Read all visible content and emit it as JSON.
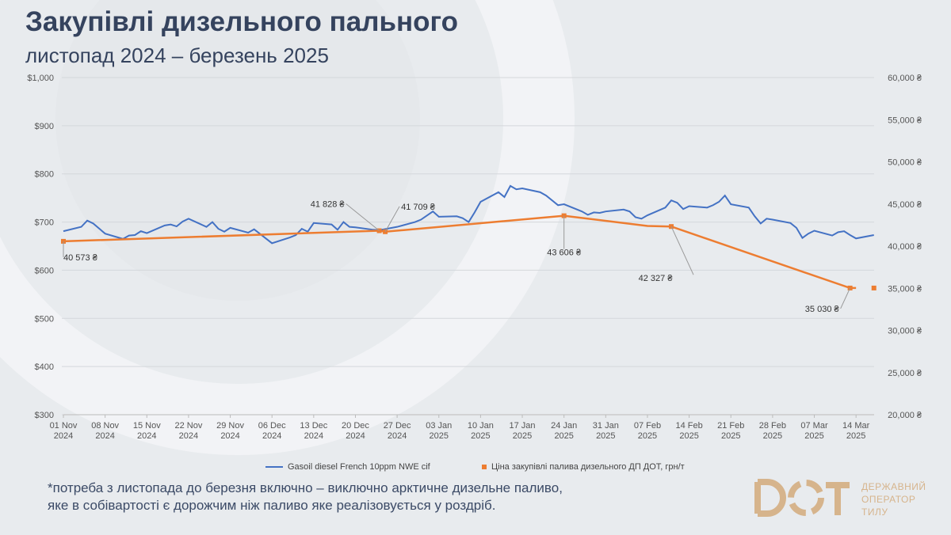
{
  "title": "Закупівлі дизельного пального",
  "subtitle": "листопад 2024 – березень 2025",
  "footnote": "*потреба з листопада до березня включно – виключно арктичне дизельне паливо, яке в собівартості є дорожчим ніж паливо яке реалізовується у роздріб.",
  "logo": {
    "mark": "DOT",
    "text_lines": [
      "ДЕРЖАВНИЙ",
      "ОПЕРАТОР",
      "ТИЛУ"
    ],
    "color": "#d6b48c"
  },
  "chart_data": {
    "type": "line",
    "left_axis": {
      "ylim": [
        300,
        1000
      ],
      "ticks": [
        "$1,000",
        "$900",
        "$800",
        "$700",
        "$600",
        "$500",
        "$400",
        "$300"
      ]
    },
    "right_axis": {
      "ylim": [
        20000,
        60000
      ],
      "ticks": [
        "60,000 ₴",
        "55,000 ₴",
        "50,000 ₴",
        "45,000 ₴",
        "40,000 ₴",
        "35,000 ₴",
        "30,000 ₴",
        "25,000 ₴",
        "20,000 ₴"
      ]
    },
    "x_ticks": [
      [
        "01 Nov",
        "2024"
      ],
      [
        "08 Nov",
        "2024"
      ],
      [
        "15 Nov",
        "2024"
      ],
      [
        "22 Nov",
        "2024"
      ],
      [
        "29 Nov",
        "2024"
      ],
      [
        "06 Dec",
        "2024"
      ],
      [
        "13 Dec",
        "2024"
      ],
      [
        "20 Dec",
        "2024"
      ],
      [
        "27 Dec",
        "2024"
      ],
      [
        "03 Jan",
        "2025"
      ],
      [
        "10 Jan",
        "2025"
      ],
      [
        "17 Jan",
        "2025"
      ],
      [
        "24 Jan",
        "2025"
      ],
      [
        "31 Jan",
        "2025"
      ],
      [
        "07 Feb",
        "2025"
      ],
      [
        "14 Feb",
        "2025"
      ],
      [
        "21 Feb",
        "2025"
      ],
      [
        "28 Feb",
        "2025"
      ],
      [
        "07 Mar",
        "2025"
      ],
      [
        "14 Mar",
        "2025"
      ]
    ],
    "grid": true,
    "legend_position": "bottom",
    "series": [
      {
        "name": "Gasoil diesel French 10ppm NWE cif",
        "axis": "left",
        "color": "#4472c4",
        "points": [
          [
            "2024-11-01",
            681
          ],
          [
            "2024-11-04",
            690
          ],
          [
            "2024-11-05",
            703
          ],
          [
            "2024-11-06",
            697
          ],
          [
            "2024-11-08",
            676
          ],
          [
            "2024-11-11",
            665
          ],
          [
            "2024-11-12",
            672
          ],
          [
            "2024-11-13",
            673
          ],
          [
            "2024-11-14",
            681
          ],
          [
            "2024-11-15",
            677
          ],
          [
            "2024-11-18",
            693
          ],
          [
            "2024-11-19",
            695
          ],
          [
            "2024-11-20",
            691
          ],
          [
            "2024-11-21",
            701
          ],
          [
            "2024-11-22",
            707
          ],
          [
            "2024-11-25",
            690
          ],
          [
            "2024-11-26",
            700
          ],
          [
            "2024-11-27",
            686
          ],
          [
            "2024-11-28",
            680
          ],
          [
            "2024-11-29",
            688
          ],
          [
            "2024-12-02",
            678
          ],
          [
            "2024-12-03",
            685
          ],
          [
            "2024-12-06",
            656
          ],
          [
            "2024-12-09",
            668
          ],
          [
            "2024-12-10",
            673
          ],
          [
            "2024-12-11",
            686
          ],
          [
            "2024-12-12",
            680
          ],
          [
            "2024-12-13",
            698
          ],
          [
            "2024-12-16",
            695
          ],
          [
            "2024-12-17",
            684
          ],
          [
            "2024-12-18",
            700
          ],
          [
            "2024-12-19",
            690
          ],
          [
            "2024-12-20",
            689
          ],
          [
            "2024-12-23",
            684
          ],
          [
            "2024-12-24",
            683
          ],
          [
            "2024-12-27",
            690
          ],
          [
            "2024-12-30",
            700
          ],
          [
            "2024-12-31",
            705
          ],
          [
            "2025-01-02",
            722
          ],
          [
            "2025-01-03",
            711
          ],
          [
            "2025-01-06",
            712
          ],
          [
            "2025-01-07",
            708
          ],
          [
            "2025-01-08",
            700
          ],
          [
            "2025-01-09",
            720
          ],
          [
            "2025-01-10",
            742
          ],
          [
            "2025-01-13",
            762
          ],
          [
            "2025-01-14",
            752
          ],
          [
            "2025-01-15",
            775
          ],
          [
            "2025-01-16",
            768
          ],
          [
            "2025-01-17",
            770
          ],
          [
            "2025-01-20",
            762
          ],
          [
            "2025-01-21",
            755
          ],
          [
            "2025-01-23",
            735
          ],
          [
            "2025-01-24",
            737
          ],
          [
            "2025-01-27",
            722
          ],
          [
            "2025-01-28",
            715
          ],
          [
            "2025-01-29",
            720
          ],
          [
            "2025-01-30",
            719
          ],
          [
            "2025-01-31",
            722
          ],
          [
            "2025-02-03",
            726
          ],
          [
            "2025-02-04",
            722
          ],
          [
            "2025-02-05",
            710
          ],
          [
            "2025-02-06",
            707
          ],
          [
            "2025-02-07",
            714
          ],
          [
            "2025-02-10",
            730
          ],
          [
            "2025-02-11",
            745
          ],
          [
            "2025-02-12",
            740
          ],
          [
            "2025-02-13",
            727
          ],
          [
            "2025-02-14",
            733
          ],
          [
            "2025-02-17",
            730
          ],
          [
            "2025-02-18",
            735
          ],
          [
            "2025-02-19",
            742
          ],
          [
            "2025-02-20",
            755
          ],
          [
            "2025-02-21",
            737
          ],
          [
            "2025-02-24",
            730
          ],
          [
            "2025-02-25",
            712
          ],
          [
            "2025-02-26",
            697
          ],
          [
            "2025-02-27",
            707
          ],
          [
            "2025-02-28",
            705
          ],
          [
            "2025-03-03",
            698
          ],
          [
            "2025-03-04",
            688
          ],
          [
            "2025-03-05",
            667
          ],
          [
            "2025-03-06",
            676
          ],
          [
            "2025-03-07",
            682
          ],
          [
            "2025-03-10",
            672
          ],
          [
            "2025-03-11",
            679
          ],
          [
            "2025-03-12",
            681
          ],
          [
            "2025-03-13",
            673
          ],
          [
            "2025-03-14",
            666
          ],
          [
            "2025-03-17",
            673
          ]
        ]
      },
      {
        "name": "Ціна закупівлі палива дизельного ДП ДОТ, грн/т",
        "axis": "right",
        "color": "#ed7d31",
        "points": [
          [
            "2024-11-01",
            40573
          ],
          [
            "2024-12-24",
            41828
          ],
          [
            "2024-12-25",
            41709
          ],
          [
            "2025-01-24",
            43606
          ],
          [
            "2025-02-07",
            42400
          ],
          [
            "2025-02-11",
            42327
          ],
          [
            "2025-03-13",
            35030
          ],
          [
            "2025-03-14",
            35030
          ]
        ],
        "extra_marker": [
          "2025-03-17",
          35030
        ]
      }
    ],
    "annotations": [
      {
        "date": "2024-11-01",
        "value": 40573,
        "text": "40 573 ₴"
      },
      {
        "date": "2024-12-24",
        "value": 41828,
        "text": "41 828 ₴"
      },
      {
        "date": "2024-12-25",
        "value": 41709,
        "text": "41 709 ₴"
      },
      {
        "date": "2025-01-24",
        "value": 43606,
        "text": "43 606 ₴"
      },
      {
        "date": "2025-02-11",
        "value": 42327,
        "text": "42 327 ₴"
      },
      {
        "date": "2025-03-13",
        "value": 35030,
        "text": "35 030 ₴"
      }
    ]
  }
}
